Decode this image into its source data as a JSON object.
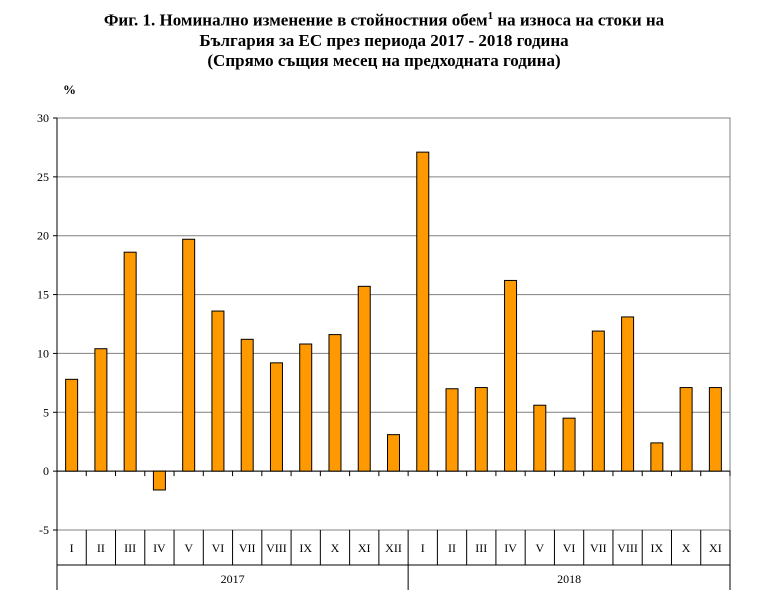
{
  "title": {
    "line1_before": "Фиг. 1. Номинално изменение в стойностния обем",
    "sup": "1",
    "line1_after": " на износа на стоки на",
    "line2": "България за ЕС през периода 2017 - 2018 година",
    "line3": "(Спрямо същия месец на предходната година)"
  },
  "chart_data": {
    "type": "bar",
    "ylabel": "%",
    "ylim": [
      -5,
      30
    ],
    "yticks": [
      30,
      25,
      20,
      15,
      10,
      5,
      0,
      -5
    ],
    "grid": true,
    "bar_color": "#FF9900",
    "categories": [
      "I",
      "II",
      "III",
      "IV",
      "V",
      "VI",
      "VII",
      "VIII",
      "IX",
      "X",
      "XI",
      "XII",
      "I",
      "II",
      "III",
      "IV",
      "V",
      "VI",
      "VII",
      "VIII",
      "IX",
      "X",
      "XI"
    ],
    "groups": [
      {
        "label": "2017",
        "count": 12
      },
      {
        "label": "2018",
        "count": 11
      }
    ],
    "values": [
      7.8,
      10.4,
      18.6,
      -1.6,
      19.7,
      13.6,
      11.2,
      9.2,
      10.8,
      11.6,
      15.7,
      3.1,
      27.1,
      7.0,
      7.1,
      16.2,
      5.6,
      4.5,
      11.9,
      13.1,
      2.4,
      7.1,
      7.1
    ]
  }
}
